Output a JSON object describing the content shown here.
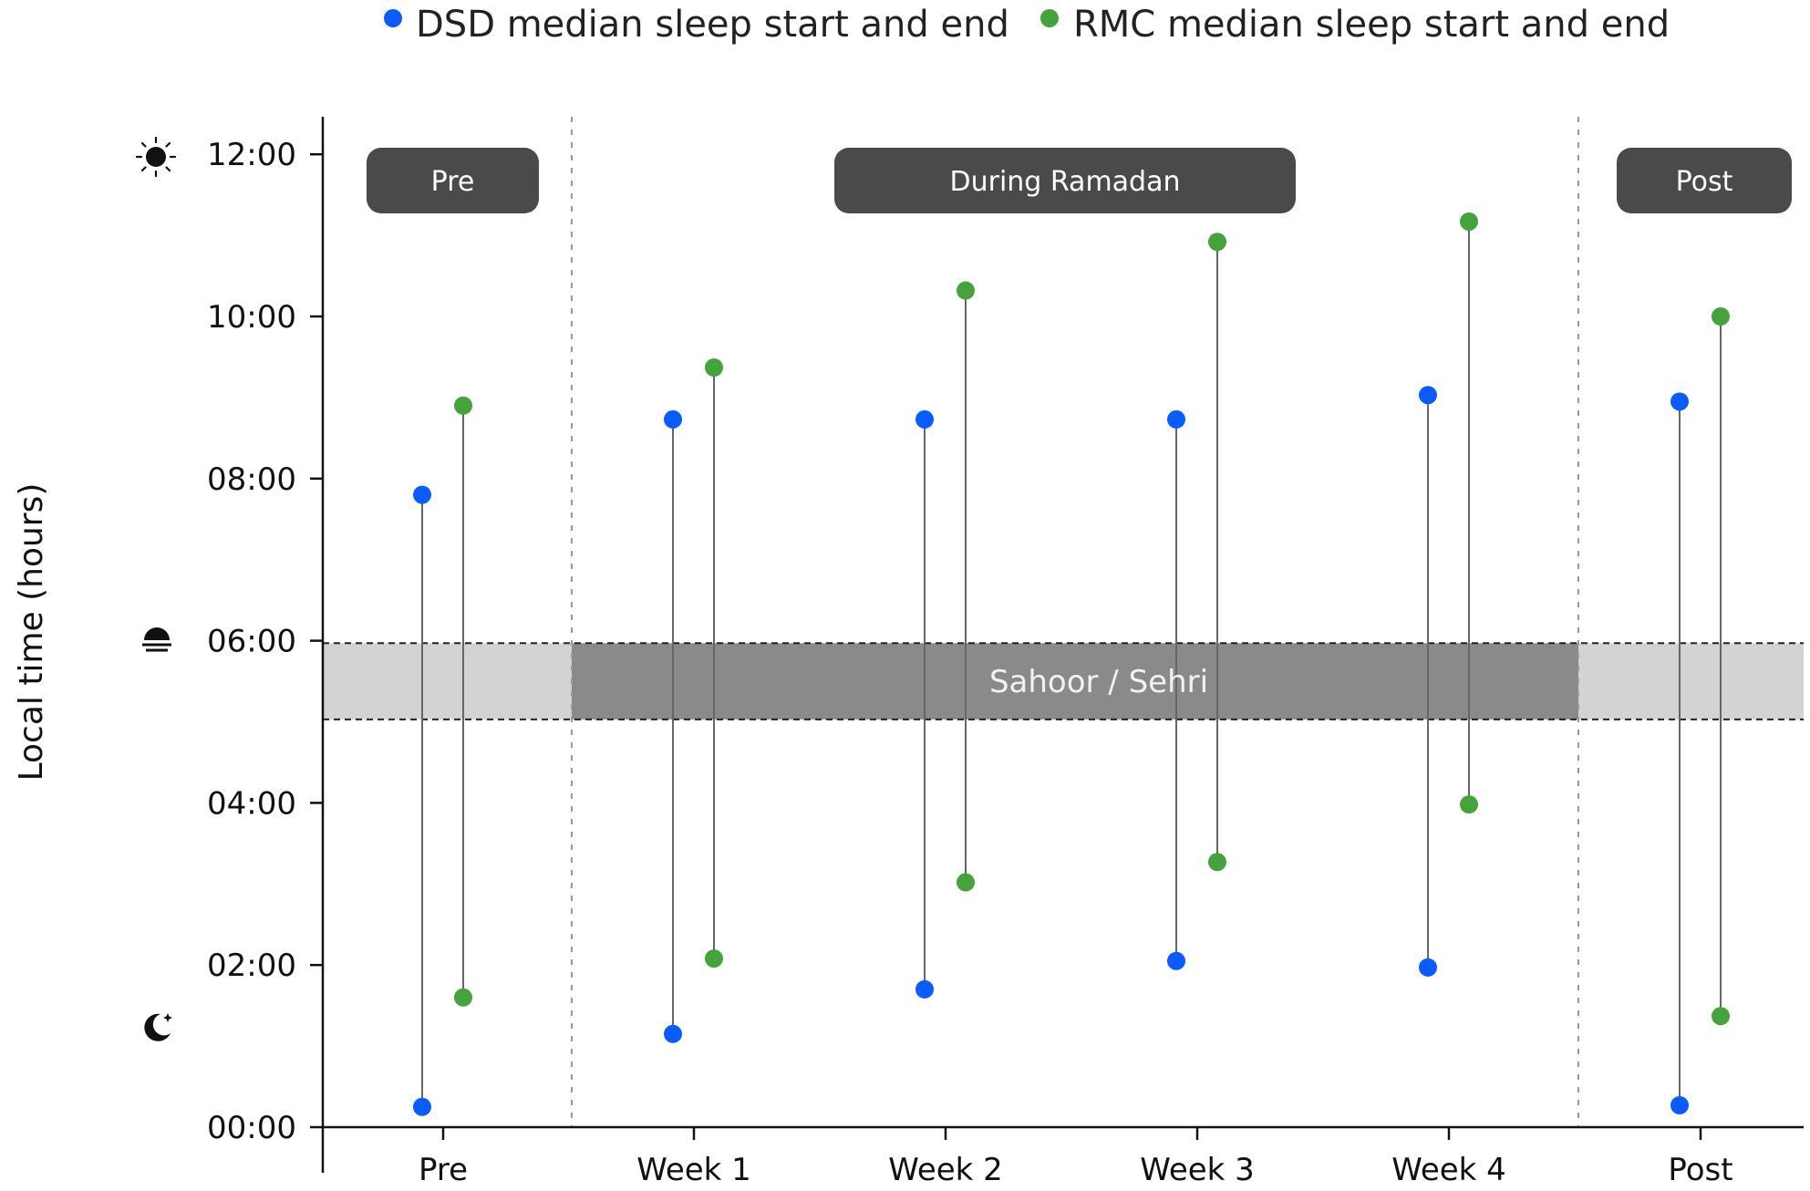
{
  "chart_data": {
    "type": "scatter",
    "title": "",
    "xlabel": "",
    "ylabel": "Local time (hours)",
    "categories": [
      "Pre",
      "Week 1",
      "Week 2",
      "Week 3",
      "Week 4",
      "Post"
    ],
    "y_unit": "hours",
    "ylim": [
      0,
      12.5
    ],
    "yticks": [
      0,
      2,
      4,
      6,
      8,
      10,
      12
    ],
    "ytick_labels": [
      "00:00",
      "02:00",
      "04:00",
      "06:00",
      "08:00",
      "10:00",
      "12:00"
    ],
    "grid": false,
    "legend_position": "top",
    "series": [
      {
        "name": "DSD median sleep start and end",
        "color": "#0a5cff",
        "sleep_start": [
          0.25,
          1.15,
          1.7,
          2.05,
          1.97,
          0.27
        ],
        "sleep_end": [
          7.8,
          8.73,
          8.73,
          8.73,
          9.03,
          8.95
        ]
      },
      {
        "name": "RMC median sleep start and end",
        "color": "#44a33b",
        "sleep_start": [
          1.6,
          2.08,
          3.02,
          3.27,
          3.98,
          1.37
        ],
        "sleep_end": [
          8.9,
          9.37,
          10.32,
          10.92,
          11.17,
          10.0
        ]
      }
    ],
    "phases": [
      {
        "label": "Pre",
        "categories": [
          "Pre"
        ]
      },
      {
        "label": "During Ramadan",
        "categories": [
          "Week 1",
          "Week 2",
          "Week 3",
          "Week 4"
        ]
      },
      {
        "label": "Post",
        "categories": [
          "Post"
        ]
      }
    ],
    "band": {
      "label": "Sahoor / Sehri",
      "y_range": [
        5.03,
        5.97
      ],
      "color_outside": "#d3d3d3",
      "color_during": "#8a8a8a"
    },
    "y_icons": [
      {
        "icon": "sun-icon",
        "y": 12
      },
      {
        "icon": "sunrise-icon",
        "y": 6
      },
      {
        "icon": "moon-star-icon",
        "y": 1.25
      }
    ],
    "connector_color": "#666666"
  }
}
